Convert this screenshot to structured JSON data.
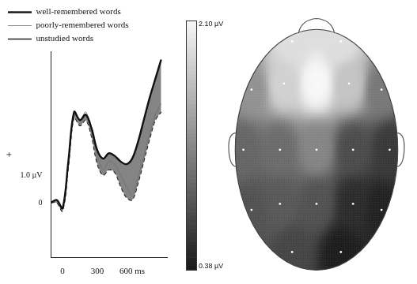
{
  "chart_data": [
    {
      "type": "line",
      "ylabel": "+",
      "x": [
        -100,
        -50,
        0,
        50,
        100,
        150,
        200,
        250,
        300,
        350,
        400,
        450,
        500,
        550,
        600,
        650,
        700,
        750,
        800,
        850
      ],
      "series": [
        {
          "name": "well-remembered words",
          "color": "#111111",
          "line_style": "solid",
          "values": [
            0,
            0.1,
            -0.2,
            1.5,
            3.3,
            3.0,
            3.2,
            2.7,
            1.9,
            1.6,
            1.8,
            1.7,
            1.5,
            1.4,
            1.6,
            2.2,
            3.0,
            3.8,
            4.5,
            5.2
          ]
        },
        {
          "name": "poorly-remembered words",
          "color": "#8a8a8a",
          "line_style": "solid",
          "values": [
            0,
            0.1,
            -0.2,
            1.4,
            3.2,
            3.0,
            3.3,
            2.6,
            1.7,
            1.2,
            1.5,
            1.4,
            1.0,
            0.6,
            0.3,
            0.9,
            1.7,
            2.5,
            3.2,
            3.6
          ]
        },
        {
          "name": "unstudied words",
          "color": "#111111",
          "line_style": "dashed",
          "values": [
            0,
            0,
            -0.3,
            1.3,
            3.1,
            2.8,
            3.0,
            2.4,
            1.4,
            1.0,
            1.2,
            1.1,
            0.6,
            0.2,
            0.1,
            0.7,
            1.5,
            2.3,
            3.0,
            3.3
          ]
        }
      ],
      "xlim": [
        -100,
        900
      ],
      "xticks": [
        0,
        300,
        {
          "value": 600,
          "label": "600 ms"
        }
      ],
      "ylim": [
        -2,
        5.5
      ],
      "yticks": [
        0,
        {
          "value": 1.0,
          "label": "1.0 µV"
        }
      ],
      "grid": false,
      "legend": "top"
    },
    {
      "type": "topographic map",
      "xlim": [
        -1.12,
        1.12
      ],
      "ylim": [
        -1.05,
        1.1
      ],
      "tick_labels": false,
      "electrodes": {
        "x": [
          -0.3,
          0.3,
          0,
          -0.4,
          0.4,
          -0.8,
          0.8,
          0,
          -0.45,
          0.45,
          -0.9,
          0.9,
          0,
          -0.45,
          0.45,
          -0.8,
          0.8,
          -0.3,
          0.3
        ],
        "y": [
          0.9,
          0.9,
          0.55,
          0.55,
          0.55,
          0.5,
          0.5,
          0,
          0,
          0,
          0,
          0,
          -0.45,
          -0.45,
          -0.45,
          -0.5,
          -0.5,
          -0.85,
          -0.85
        ],
        "values": [
          1.9,
          1.9,
          2.1,
          1.8,
          1.7,
          1.3,
          1.1,
          1.2,
          1.0,
          0.75,
          0.95,
          0.6,
          0.8,
          0.85,
          0.5,
          0.8,
          0.42,
          0.7,
          0.38
        ]
      },
      "colorbar": {
        "range": [
          0.38,
          2.1
        ],
        "ticks": [
          {
            "value": 2.1,
            "label": "2.10 µV"
          },
          {
            "value": 0.38,
            "label": "0.38 µV"
          }
        ]
      }
    }
  ]
}
